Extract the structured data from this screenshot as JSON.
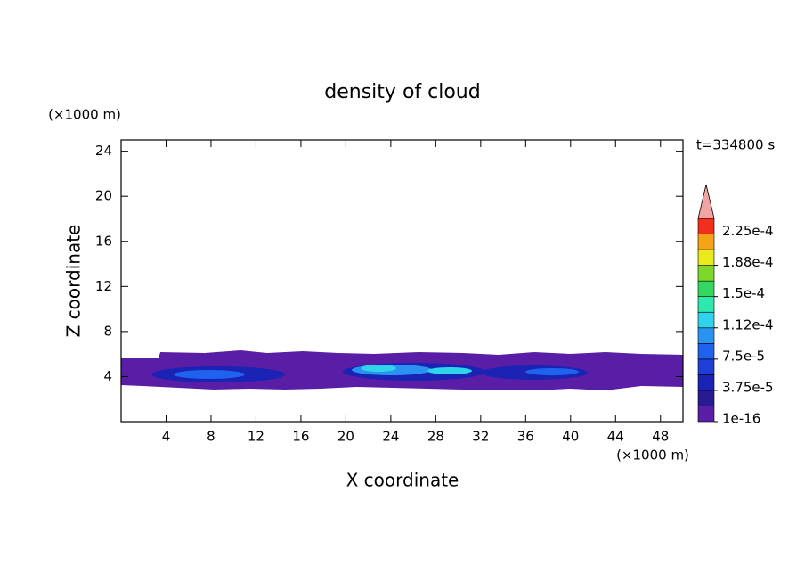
{
  "chart_data": {
    "type": "contour",
    "title": "density of cloud",
    "x_label": "X coordinate",
    "y_label": "Z coordinate",
    "x_unit": "(×1000 m)",
    "y_unit": "(×1000 m)",
    "time_label": "t=334800 s",
    "xlim": [
      0,
      50
    ],
    "ylim": [
      0,
      25
    ],
    "xticks": [
      4,
      8,
      12,
      16,
      20,
      24,
      28,
      32,
      36,
      40,
      44,
      48
    ],
    "yticks": [
      4,
      8,
      12,
      16,
      20,
      24
    ],
    "colorbar": {
      "lim": [
        0,
        0.00024375
      ],
      "ticks": [
        {
          "value": 1e-16,
          "label": "1e-16"
        },
        {
          "value": 3.75e-05,
          "label": "3.75e-5"
        },
        {
          "value": 7.5e-05,
          "label": "7.5e-5"
        },
        {
          "value": 0.0001125,
          "label": "1.12e-4"
        },
        {
          "value": 0.00015,
          "label": "1.5e-4"
        },
        {
          "value": 0.0001875,
          "label": "1.88e-4"
        },
        {
          "value": 0.000225,
          "label": "2.25e-4"
        }
      ],
      "colors": [
        "#5a1ea6",
        "#2a1a92",
        "#1a23b4",
        "#1d3fd6",
        "#1f62ee",
        "#2a93f2",
        "#2fd3ea",
        "#2fe8ad",
        "#34d860",
        "#7ed82a",
        "#e8ea1c",
        "#f5a418",
        "#f0301c"
      ],
      "extend_color": "#f4a3a3"
    }
  }
}
